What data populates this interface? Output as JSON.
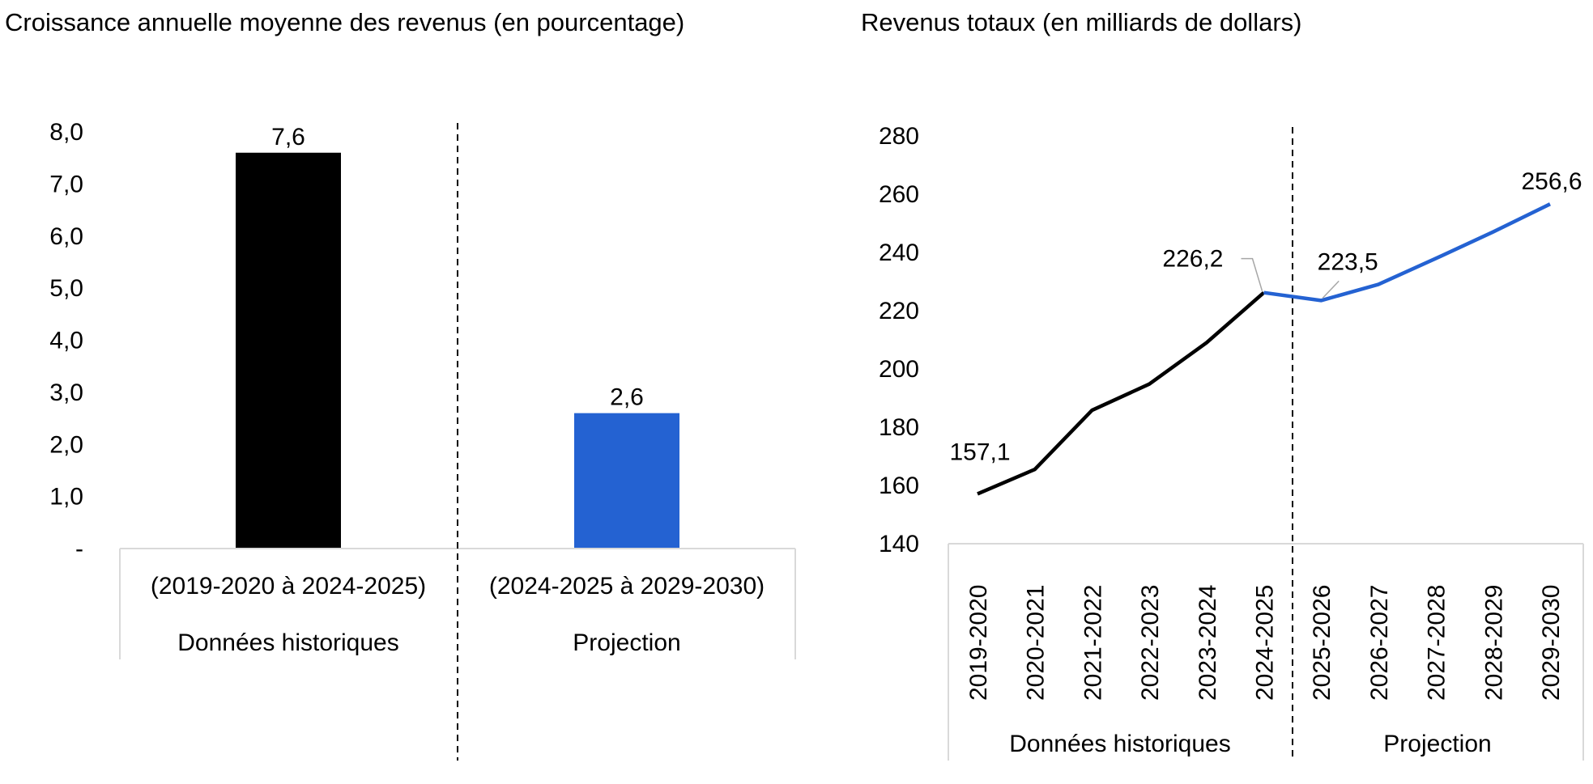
{
  "chart_data": [
    {
      "type": "bar",
      "title": "Croissance annuelle moyenne des revenus (en pourcentage)",
      "xlabel": "",
      "ylabel": "",
      "ylim": [
        0,
        8
      ],
      "yticks": [
        "-",
        "1,0",
        "2,0",
        "3,0",
        "4,0",
        "5,0",
        "6,0",
        "7,0",
        "8,0"
      ],
      "categories": [
        "(2019-2020 à 2024-2025)",
        "(2024-2025 à 2029-2030)"
      ],
      "groups": [
        "Données historiques",
        "Projection"
      ],
      "values": [
        7.6,
        2.6
      ],
      "value_labels": [
        "7,6",
        "2,6"
      ],
      "colors": [
        "#000000",
        "#2462d2"
      ],
      "grid": false,
      "legend": "none"
    },
    {
      "type": "line",
      "title": "Revenus totaux (en milliards de dollars)",
      "xlabel": "",
      "ylabel": "",
      "ylim": [
        140,
        280
      ],
      "yticks": [
        "140",
        "160",
        "180",
        "200",
        "220",
        "240",
        "260",
        "280"
      ],
      "x": [
        "2019-2020",
        "2020-2021",
        "2021-2022",
        "2022-2023",
        "2023-2024",
        "2024-2025",
        "2025-2026",
        "2026-2027",
        "2027-2028",
        "2028-2029",
        "2029-2030"
      ],
      "groups": [
        "Données historiques",
        "Projection"
      ],
      "series": [
        {
          "values": [
            157.1,
            165.5,
            185.8,
            194.8,
            209.0,
            226.2,
            null,
            null,
            null,
            null,
            null
          ],
          "color": "#000000"
        },
        {
          "values": [
            null,
            null,
            null,
            null,
            null,
            226.2,
            223.5,
            229.0,
            237.9,
            247.0,
            256.6
          ],
          "color": "#2462d2"
        }
      ],
      "annotations": [
        {
          "index": 0,
          "text": "157,1"
        },
        {
          "index": 5,
          "text": "226,2"
        },
        {
          "index": 6,
          "text": "223,5"
        },
        {
          "index": 10,
          "text": "256,6"
        }
      ],
      "grid": false,
      "legend": "none"
    }
  ]
}
